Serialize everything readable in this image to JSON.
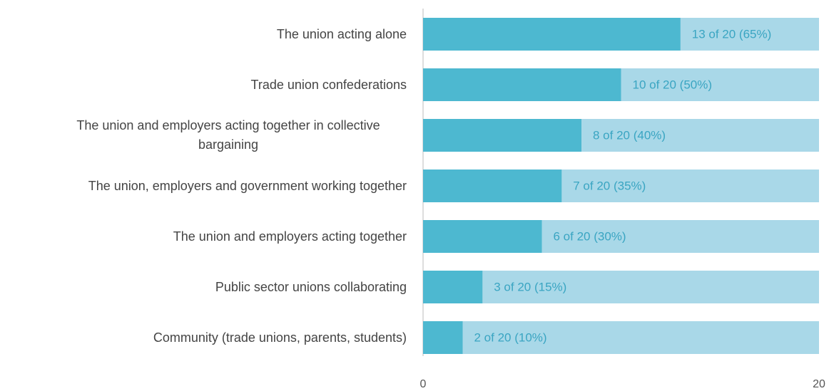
{
  "chart_data": {
    "type": "bar",
    "orientation": "horizontal",
    "categories": [
      "The union acting alone",
      "Trade union confederations",
      "The union and employers acting together in collective bargaining",
      "The union, employers and government working together",
      "The union and employers acting together",
      "Public sector unions collaborating",
      "Community (trade unions, parents, students)"
    ],
    "values": [
      13,
      10,
      8,
      7,
      6,
      3,
      2
    ],
    "value_labels": [
      "13 of 20 (65%)",
      "10 of 20 (50%)",
      "8 of 20 (40%)",
      "7 of 20 (35%)",
      "6 of 20 (30%)",
      "3 of 20 (15%)",
      "2 of 20 (10%)"
    ],
    "color": "#4db8d0",
    "background_color": "#a9d8e8",
    "label_color": "#3aa5c2",
    "xlim": [
      0,
      20
    ],
    "xticks": [
      0,
      20
    ]
  }
}
